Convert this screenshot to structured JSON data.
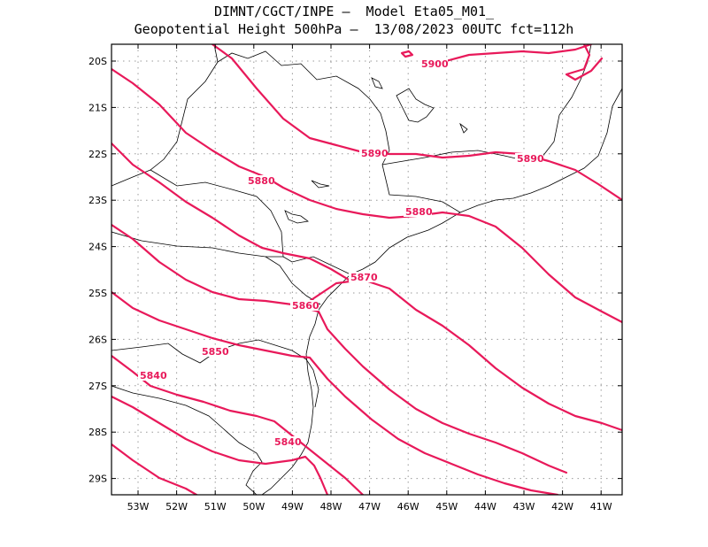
{
  "title": {
    "line1": "DIMNT/CGCT/INPE –  Model Eta05_M01_",
    "line2": "Geopotential Height 500hPa –  13/08/2023 00UTC fct=112h"
  },
  "colors": {
    "contour": "#e8195a",
    "coast": "#000000",
    "grid": "#999999",
    "frame": "#000000"
  },
  "axes": {
    "lon_ticks": [
      "53W",
      "52W",
      "51W",
      "50W",
      "49W",
      "48W",
      "47W",
      "46W",
      "45W",
      "44W",
      "43W",
      "42W",
      "41W"
    ],
    "lat_ticks": [
      "20S",
      "21S",
      "22S",
      "23S",
      "24S",
      "25S",
      "26S",
      "27S",
      "28S",
      "29S"
    ]
  },
  "contour_labels": [
    {
      "text": "5900"
    },
    {
      "text": "5890"
    },
    {
      "text": "5890"
    },
    {
      "text": "5880"
    },
    {
      "text": "5880"
    },
    {
      "text": "5870"
    },
    {
      "text": "5860"
    },
    {
      "text": "5850"
    },
    {
      "text": "5840"
    },
    {
      "text": "5840"
    }
  ]
}
